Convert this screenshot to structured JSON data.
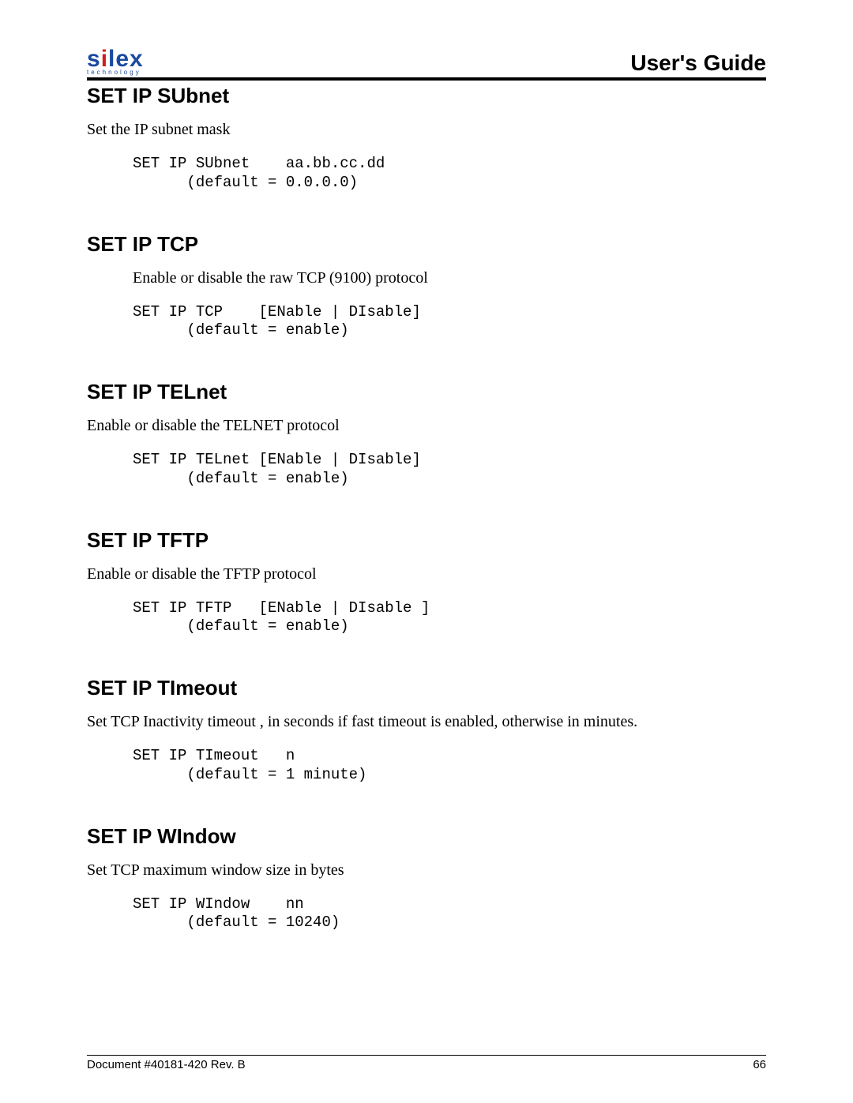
{
  "header": {
    "logo_main_pre": "s",
    "logo_main_i": "i",
    "logo_main_post": "lex",
    "logo_sub": "technology",
    "guide_title": "User's Guide"
  },
  "sections": [
    {
      "heading": "SET IP SUbnet",
      "desc": "Set the IP subnet mask",
      "desc_indent": false,
      "code": "SET IP SUbnet    aa.bb.cc.dd\n      (default = 0.0.0.0)"
    },
    {
      "heading": "SET IP TCP",
      "desc": "Enable or disable the raw TCP (9100) protocol",
      "desc_indent": true,
      "code": "SET IP TCP    [ENable | DIsable]\n      (default = enable)"
    },
    {
      "heading": "SET IP TELnet",
      "desc": "Enable or disable the TELNET protocol",
      "desc_indent": false,
      "code": "SET IP TELnet [ENable | DIsable]\n      (default = enable)"
    },
    {
      "heading": "SET IP TFTP",
      "desc": "Enable or disable the TFTP protocol",
      "desc_indent": false,
      "code": "SET IP TFTP   [ENable | DIsable ]\n      (default = enable)"
    },
    {
      "heading": "SET IP TImeout",
      "desc": "Set TCP Inactivity timeout , in seconds if fast timeout is enabled, otherwise in minutes.",
      "desc_indent": false,
      "code": "SET IP TImeout   n\n      (default = 1 minute)"
    },
    {
      "heading": "SET IP WIndow",
      "desc": "Set TCP maximum window size in bytes",
      "desc_indent": false,
      "code": "SET IP WIndow    nn\n      (default = 10240)"
    }
  ],
  "footer": {
    "doc_ref": "Document #40181-420  Rev. B",
    "page_number": "66"
  }
}
